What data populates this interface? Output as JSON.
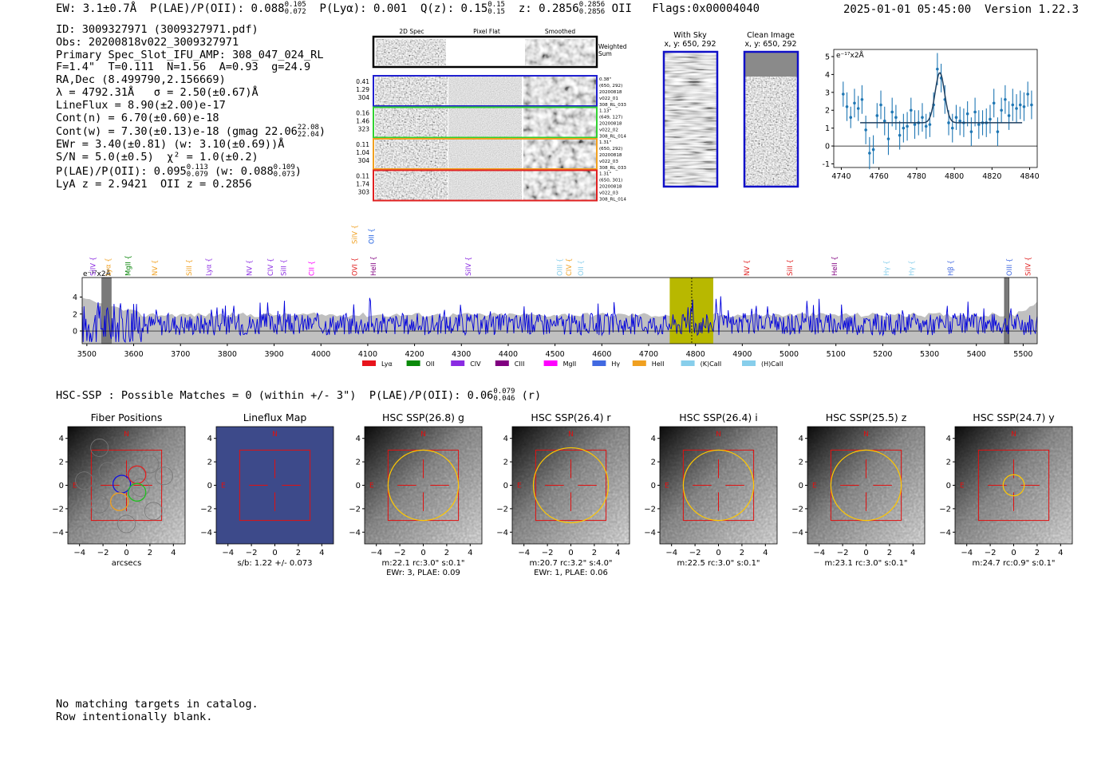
{
  "header": {
    "ew": "EW: 3.1±0.7Å",
    "plae": "P(LAE)/P(OII): 0.088",
    "plae_hi": "0.105",
    "plae_lo": "0.072",
    "plya": "P(Lyα): 0.001",
    "qz": "Q(z): 0.15",
    "qz_hi": "0.15",
    "qz_lo": "0.15",
    "z": "z: 0.2856",
    "z_hi": "0.2856",
    "z_lo": "0.2856",
    "line": "OII",
    "flags": "Flags:0x00004040",
    "datetime": "2025-01-01 05:45:00",
    "version": "Version 1.22.3"
  },
  "info": {
    "id": "ID: 3009327971 (3009327971.pdf)",
    "obs": "Obs: 20200818v022_3009327971",
    "primary": "Primary Spec_Slot_IFU_AMP: 308_047_024_RL",
    "params": "F=1.4\"  T=0.111  N=1.56  A=0.93  g=24.9",
    "radec": "RA,Dec (8.499790,2.156669)",
    "lambda": "λ = 4792.31Å   σ = 2.50(±0.67)Å",
    "lineflux": "LineFlux = 8.90(±2.00)e-17",
    "contn": "Cont(n) = 6.70(±0.60)e-18",
    "contw": "Cont(w) = 7.30(±0.13)e-18 (gmag 22.06",
    "contw_hi": "22.08",
    "contw_lo": "22.04",
    "ewr": "EWr = 3.40(±0.81) (w: 3.10(±0.69))Å",
    "sn": "S/N = 5.0(±0.5)  χ² = 1.0(±0.2)",
    "plae": "P(LAE)/P(OII): 0.095",
    "plae_hi": "0.113",
    "plae_lo": "0.079",
    "plae_w": "(w: 0.088",
    "plae_w_hi": "0.109",
    "plae_w_lo": "0.073",
    "lya": "LyA z = 2.9421  OII z = 0.2856"
  },
  "cutouts": {
    "col_titles": [
      "2D Spec",
      "Pixel Flat",
      "Smoothed"
    ],
    "weighted": [
      "Weighted",
      "Sum"
    ],
    "rows": [
      {
        "color": "#1f1fd0",
        "left": [
          "0.41",
          "1.29",
          "304"
        ],
        "right": [
          "0.38\"",
          "(650, 292)",
          "20200818",
          "v022_01",
          "308_RL_033"
        ]
      },
      {
        "color": "#30d030",
        "left": [
          "0.16",
          "1.46",
          "323"
        ],
        "right": [
          "1.13\"",
          "(649, 127)",
          "20200818",
          "v022_02",
          "308_RL_014"
        ]
      },
      {
        "color": "#f0a020",
        "left": [
          "0.11",
          "1.04",
          "304"
        ],
        "right": [
          "1.31\"",
          "(650, 292)",
          "20200818",
          "v022_03",
          "308_RL_033"
        ]
      },
      {
        "color": "#e02020",
        "left": [
          "0.11",
          "1.74",
          "303"
        ],
        "right": [
          "1.31\"",
          "(650, 301)",
          "20200818",
          "v022_03",
          "308_RL_014"
        ]
      }
    ],
    "with_sky": [
      "With Sky",
      "x, y: 650, 292"
    ],
    "clean": [
      "Clean Image",
      "x, y: 650, 292"
    ]
  },
  "zoom_chart": {
    "type": "scatter",
    "unit_label": "e⁻¹⁷x2Å",
    "xlim": [
      4736,
      4844
    ],
    "ylim": [
      -1.2,
      5.4
    ],
    "xticks": [
      4740,
      4760,
      4780,
      4800,
      4820,
      4840
    ],
    "yticks": [
      -1,
      0,
      1,
      2,
      3,
      4,
      5
    ],
    "x": [
      4741,
      4743,
      4745,
      4747,
      4749,
      4751,
      4753,
      4755,
      4757,
      4759,
      4761,
      4763,
      4765,
      4767,
      4769,
      4771,
      4773,
      4775,
      4777,
      4779,
      4781,
      4783,
      4785,
      4787,
      4789,
      4791,
      4793,
      4795,
      4797,
      4799,
      4801,
      4803,
      4805,
      4807,
      4809,
      4811,
      4813,
      4815,
      4817,
      4819,
      4821,
      4823,
      4825,
      4827,
      4829,
      4831,
      4833,
      4835,
      4837,
      4839,
      4841
    ],
    "y": [
      2.9,
      2.2,
      1.6,
      2.4,
      2.1,
      2.6,
      0.9,
      -0.4,
      -0.2,
      1.7,
      2.3,
      1.4,
      0.4,
      1.9,
      1.6,
      0.6,
      1.0,
      1.1,
      2.0,
      1.2,
      1.3,
      1.6,
      1.1,
      1.2,
      2.3,
      4.3,
      3.8,
      2.6,
      1.3,
      1.0,
      1.6,
      1.4,
      1.3,
      1.8,
      0.8,
      1.9,
      1.2,
      1.3,
      1.3,
      1.5,
      2.4,
      0.8,
      2.0,
      2.6,
      1.7,
      2.3,
      2.1,
      2.3,
      2.2,
      2.9,
      2.3
    ],
    "err": [
      0.7,
      0.8,
      0.6,
      0.8,
      0.7,
      0.8,
      0.8,
      0.9,
      0.8,
      0.7,
      0.8,
      0.8,
      0.9,
      0.8,
      0.7,
      0.8,
      0.8,
      0.8,
      0.7,
      0.8,
      0.7,
      0.8,
      0.7,
      0.7,
      0.7,
      0.9,
      0.8,
      0.8,
      0.7,
      0.8,
      0.7,
      0.8,
      0.8,
      0.7,
      0.8,
      0.8,
      0.8,
      0.7,
      0.8,
      0.8,
      0.8,
      0.8,
      0.7,
      0.8,
      0.8,
      0.9,
      0.8,
      0.8,
      0.8,
      0.7,
      0.8
    ],
    "fit": {
      "continuum": 1.3,
      "peak": 4.1,
      "center": 4792.3,
      "sigma": 2.5
    }
  },
  "full_chart": {
    "type": "line",
    "unit_label": "e⁻¹⁷x2Å",
    "xlim": [
      3490,
      5530
    ],
    "ylim": [
      -1.5,
      6.3
    ],
    "xticks": [
      3500,
      3600,
      3700,
      3800,
      3900,
      4000,
      4100,
      4200,
      4300,
      4400,
      4500,
      4600,
      4700,
      4800,
      4900,
      5000,
      5100,
      5200,
      5300,
      5400,
      5500
    ],
    "yticks": [
      0,
      2,
      4
    ],
    "highlight_band": [
      4745,
      4838
    ],
    "line_marker": 4792,
    "gaps": [
      [
        3532,
        3552
      ],
      [
        5460,
        5470
      ]
    ],
    "lines_top": [
      {
        "x": 4072,
        "label": "SiIV",
        "color": "#f0a020"
      },
      {
        "x": 4108,
        "label": "OII",
        "color": "#1f5fe0"
      }
    ],
    "lines": [
      {
        "x": 3513,
        "label": "SiIV",
        "color": "#8a2be2"
      },
      {
        "x": 3545,
        "label": "Lyα",
        "color": "#f0a020"
      },
      {
        "x": 3588,
        "label": "MgII",
        "color": "#008000"
      },
      {
        "x": 3645,
        "label": "NV",
        "color": "#f0a020"
      },
      {
        "x": 3718,
        "label": "SiII",
        "color": "#f0a020"
      },
      {
        "x": 3760,
        "label": "Lyα",
        "color": "#8a2be2"
      },
      {
        "x": 3847,
        "label": "NV",
        "color": "#8a2be2"
      },
      {
        "x": 3892,
        "label": "CIV",
        "color": "#8a2be2"
      },
      {
        "x": 3920,
        "label": "SiII",
        "color": "#8a2be2"
      },
      {
        "x": 3980,
        "label": "CII",
        "color": "#ff00ff"
      },
      {
        "x": 4072,
        "label": "OVI",
        "color": "#e02020"
      },
      {
        "x": 4112,
        "label": "HeII",
        "color": "#800080"
      },
      {
        "x": 4315,
        "label": "SiIV",
        "color": "#8a2be2"
      },
      {
        "x": 4510,
        "label": "OIII",
        "color": "#87ceeb"
      },
      {
        "x": 4530,
        "label": "CIV",
        "color": "#f0a020"
      },
      {
        "x": 4555,
        "label": "OII",
        "color": "#87ceeb"
      },
      {
        "x": 4910,
        "label": "NV",
        "color": "#e02020"
      },
      {
        "x": 5002,
        "label": "SiII",
        "color": "#e02020"
      },
      {
        "x": 5097,
        "label": "HeII",
        "color": "#800080"
      },
      {
        "x": 5208,
        "label": "Hγ",
        "color": "#87ceeb"
      },
      {
        "x": 5262,
        "label": "Hγ",
        "color": "#87ceeb"
      },
      {
        "x": 5345,
        "label": "Hβ",
        "color": "#4169e1"
      },
      {
        "x": 5470,
        "label": "OIII",
        "color": "#4169e1"
      },
      {
        "x": 5510,
        "label": "SiIV",
        "color": "#e02020"
      }
    ],
    "legend": [
      {
        "label": "Lyα",
        "color": "#e8141c"
      },
      {
        "label": "OII",
        "color": "#0a8a0a"
      },
      {
        "label": "CIV",
        "color": "#8a2be2"
      },
      {
        "label": "CIII",
        "color": "#800080"
      },
      {
        "label": "MgII",
        "color": "#ff00ff"
      },
      {
        "label": "Hγ",
        "color": "#4169e1"
      },
      {
        "label": "HeII",
        "color": "#f0a020"
      },
      {
        "label": "(K)CaII",
        "color": "#87ceeb"
      },
      {
        "label": "(H)CaII",
        "color": "#87ceeb"
      }
    ]
  },
  "hsc": {
    "title": "HSC-SSP : Possible Matches = 0 (within +/- 3\")  P(LAE)/P(OII): 0.06",
    "title_hi": "0.079",
    "title_lo": "0.046",
    "title_band": "(r)",
    "xticks": [
      -4,
      -2,
      0,
      2,
      4
    ],
    "yticks": [
      4,
      2,
      0,
      -2,
      -4
    ],
    "north": "N",
    "east": "E",
    "panels": [
      {
        "title": "Fiber Positions",
        "caption": [
          "arcsecs"
        ],
        "kind": "fiber"
      },
      {
        "title": "Lineflux Map",
        "caption": [
          "s/b: 1.22 +/- 0.073"
        ],
        "kind": "flux"
      },
      {
        "title": "HSC SSP(26.8) g",
        "caption": [
          "m:22.1 rc:3.0\"  s:0.1\"",
          "EWr: 3, PLAE: 0.09"
        ],
        "kind": "img",
        "r": 3.0
      },
      {
        "title": "HSC SSP(26.4) r",
        "caption": [
          "m:20.7  rc:3.2\"  s:4.0\"",
          "EWr: 1, PLAE: 0.06"
        ],
        "kind": "img",
        "r": 3.2
      },
      {
        "title": "HSC SSP(26.4) i",
        "caption": [
          "m:22.5 rc:3.0\"  s:0.1\""
        ],
        "kind": "img",
        "r": 3.0
      },
      {
        "title": "HSC SSP(25.5) z",
        "caption": [
          "m:23.1 rc:3.0\"  s:0.1\""
        ],
        "kind": "img",
        "r": 3.0
      },
      {
        "title": "HSC SSP(24.7) y",
        "caption": [
          "m:24.7 rc:0.9\"  s:0.1\""
        ],
        "kind": "img",
        "r": 0.9
      }
    ]
  },
  "footer": {
    "line1": "No matching targets in catalog.",
    "line2": "Row intentionally blank."
  },
  "colors": {
    "spectrum": "#0000dd",
    "error_band": "#c0c0c0",
    "highlight": "#b8b800",
    "points": "#1f77b4",
    "fit": "#1f3f5f",
    "aperture": "#ffc800",
    "box": "#e01010"
  }
}
